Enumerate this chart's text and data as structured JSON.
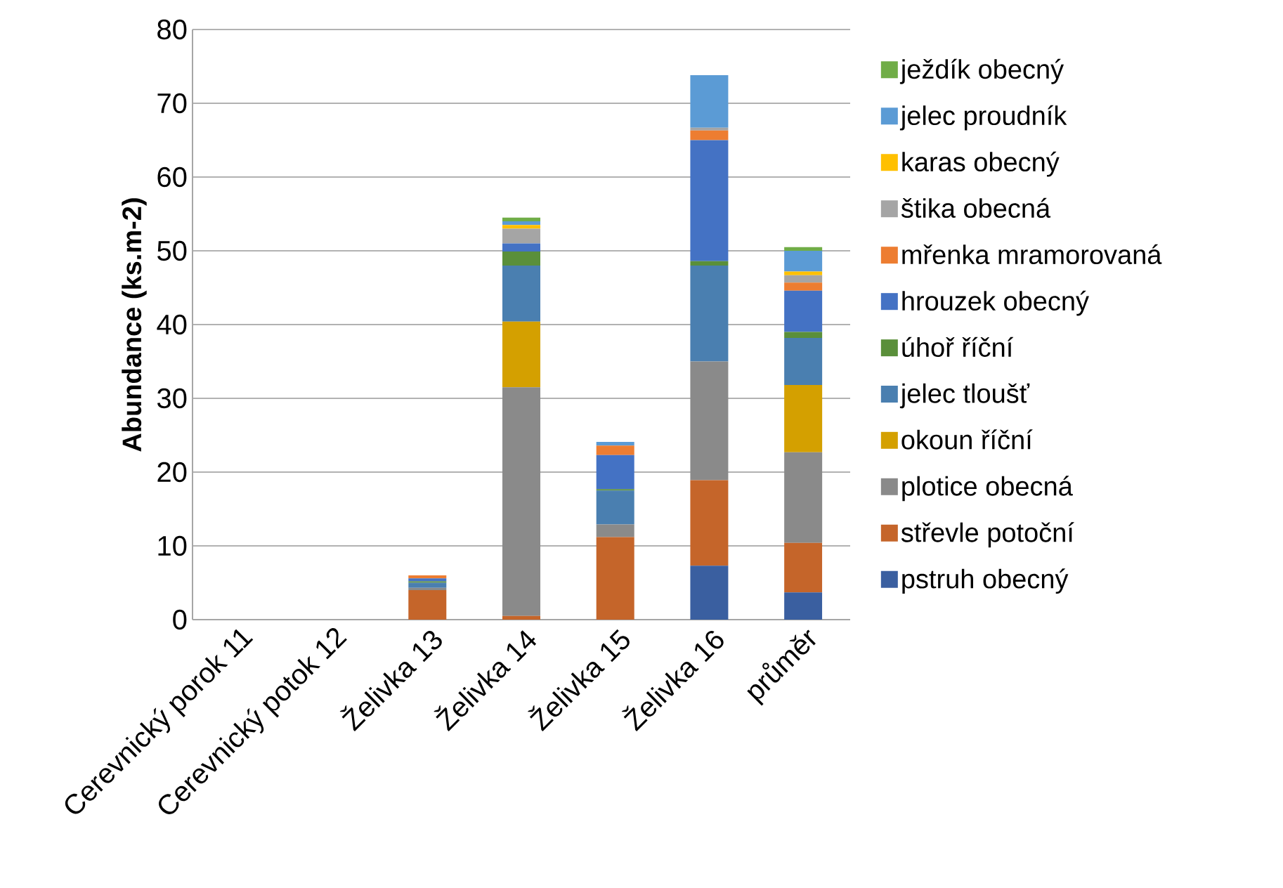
{
  "chart_data": {
    "type": "bar",
    "stacked": true,
    "ylabel": "Abundance (ks.m-2)",
    "categories": [
      "Cerevnický porok 11",
      "Cerevnický potok 12",
      "Želivka 13",
      "Želivka 14",
      "Želivka 15",
      "Želivka 16",
      "průměr"
    ],
    "series": [
      {
        "name": "pstruh obecný",
        "color": "#3a5fa0",
        "values": [
          0,
          0,
          0,
          0,
          0,
          7.3,
          3.7
        ]
      },
      {
        "name": "střevle potoční",
        "color": "#c5652a",
        "values": [
          0,
          0,
          4.0,
          0.5,
          11.2,
          11.6,
          6.7
        ]
      },
      {
        "name": "plotice obecná",
        "color": "#8a8a8a",
        "values": [
          0,
          0,
          0.3,
          31.0,
          1.7,
          16.1,
          12.3
        ]
      },
      {
        "name": "okoun říční",
        "color": "#d4a000",
        "values": [
          0,
          0,
          0,
          8.9,
          0,
          0,
          9.1
        ]
      },
      {
        "name": "jelec tloušť",
        "color": "#4a7fb0",
        "values": [
          0,
          0,
          0.7,
          7.6,
          4.6,
          13.0,
          6.4
        ]
      },
      {
        "name": "úhoř říční",
        "color": "#5a8f3a",
        "values": [
          0,
          0,
          0.2,
          1.9,
          0.2,
          0.6,
          0.8
        ]
      },
      {
        "name": "hrouzek obecný",
        "color": "#4472c4",
        "values": [
          0,
          0,
          0.4,
          1.1,
          4.6,
          16.4,
          5.6
        ]
      },
      {
        "name": "mřenka mramorovaná",
        "color": "#ed7d31",
        "values": [
          0,
          0,
          0.4,
          0,
          1.3,
          1.3,
          1.1
        ]
      },
      {
        "name": "štika obecná",
        "color": "#a5a5a5",
        "values": [
          0,
          0,
          0,
          2.0,
          0,
          0.4,
          1.0
        ]
      },
      {
        "name": "karas obecný",
        "color": "#ffc000",
        "values": [
          0,
          0,
          0,
          0.5,
          0,
          0,
          0.5
        ]
      },
      {
        "name": "jelec proudník",
        "color": "#5b9bd5",
        "values": [
          0,
          0,
          0,
          0.5,
          0.5,
          7.1,
          2.8
        ]
      },
      {
        "name": "ježdík obecný",
        "color": "#70ad47",
        "values": [
          0,
          0,
          0,
          0.5,
          0,
          0,
          0.5
        ]
      }
    ],
    "ylim": [
      0,
      80
    ],
    "yticks": [
      0,
      10,
      20,
      30,
      40,
      50,
      60,
      70,
      80
    ],
    "grid": "y",
    "legend": "right"
  }
}
